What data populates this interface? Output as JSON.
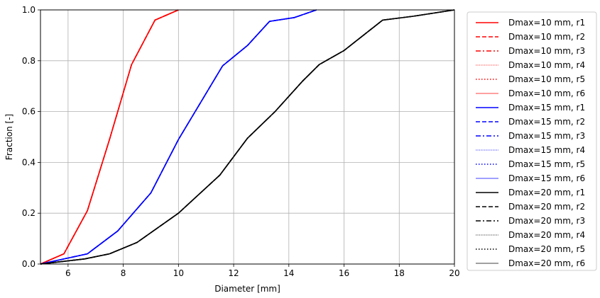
{
  "chart_data": {
    "type": "line",
    "xlabel": "Diameter [mm]",
    "ylabel": "Fraction [-]",
    "xlim": [
      5,
      20
    ],
    "ylim": [
      0,
      1
    ],
    "xticks": [
      6,
      8,
      10,
      12,
      14,
      16,
      18,
      20
    ],
    "yticks": [
      0.0,
      0.2,
      0.4,
      0.6,
      0.8,
      1.0
    ],
    "xtick_labels": [
      "6",
      "8",
      "10",
      "12",
      "14",
      "16",
      "18",
      "20"
    ],
    "ytick_labels": [
      "0.0",
      "0.2",
      "0.4",
      "0.6",
      "0.8",
      "1.0"
    ],
    "grid": true,
    "legend_position": "outside-right",
    "series": [
      {
        "name": "Dmax=10 mm, r1",
        "color": "#ff0000",
        "dash": "solid",
        "width": "normal",
        "x": [
          5,
          5.85,
          6.7,
          7.5,
          8.3,
          9.15,
          10
        ],
        "y": [
          0,
          0.04,
          0.21,
          0.49,
          0.785,
          0.96,
          1.0
        ]
      },
      {
        "name": "Dmax=10 mm, r2",
        "color": "#ff0000",
        "dash": "dashed",
        "width": "normal",
        "x": [
          5,
          5.85,
          6.7,
          7.5,
          8.3,
          9.15,
          10
        ],
        "y": [
          0,
          0.04,
          0.21,
          0.49,
          0.785,
          0.96,
          1.0
        ]
      },
      {
        "name": "Dmax=10 mm, r3",
        "color": "#ff0000",
        "dash": "dashdot",
        "width": "normal",
        "x": [
          5,
          5.85,
          6.7,
          7.5,
          8.3,
          9.15,
          10
        ],
        "y": [
          0,
          0.04,
          0.21,
          0.49,
          0.785,
          0.96,
          1.0
        ]
      },
      {
        "name": "Dmax=10 mm, r4",
        "color": "#ff0000",
        "dash": "densedot",
        "width": "thin",
        "x": [
          5,
          5.85,
          6.7,
          7.5,
          8.3,
          9.15,
          10
        ],
        "y": [
          0,
          0.04,
          0.21,
          0.49,
          0.785,
          0.96,
          1.0
        ]
      },
      {
        "name": "Dmax=10 mm, r5",
        "color": "#ff0000",
        "dash": "dotted",
        "width": "normal",
        "x": [
          5,
          5.85,
          6.7,
          7.5,
          8.3,
          9.15,
          10
        ],
        "y": [
          0,
          0.04,
          0.21,
          0.49,
          0.785,
          0.96,
          1.0
        ]
      },
      {
        "name": "Dmax=10 mm, r6",
        "color": "#ff0000",
        "dash": "solid",
        "width": "thin",
        "x": [
          5,
          5.85,
          6.7,
          7.5,
          8.3,
          9.15,
          10
        ],
        "y": [
          0,
          0.04,
          0.21,
          0.49,
          0.785,
          0.96,
          1.0
        ]
      },
      {
        "name": "Dmax=15 mm, r1",
        "color": "#0000ff",
        "dash": "solid",
        "width": "normal",
        "x": [
          5,
          6.7,
          7.8,
          9,
          10,
          11.6,
          12.5,
          13.3,
          14.2,
          15
        ],
        "y": [
          0,
          0.04,
          0.13,
          0.28,
          0.49,
          0.78,
          0.86,
          0.955,
          0.97,
          1.0
        ]
      },
      {
        "name": "Dmax=15 mm, r2",
        "color": "#0000ff",
        "dash": "dashed",
        "width": "normal",
        "x": [
          5,
          6.7,
          7.8,
          9,
          10,
          11.6,
          12.5,
          13.3,
          14.2,
          15
        ],
        "y": [
          0,
          0.04,
          0.13,
          0.28,
          0.49,
          0.78,
          0.86,
          0.955,
          0.97,
          1.0
        ]
      },
      {
        "name": "Dmax=15 mm, r3",
        "color": "#0000ff",
        "dash": "dashdot",
        "width": "normal",
        "x": [
          5,
          6.7,
          7.8,
          9,
          10,
          11.6,
          12.5,
          13.3,
          14.2,
          15
        ],
        "y": [
          0,
          0.04,
          0.13,
          0.28,
          0.49,
          0.78,
          0.86,
          0.955,
          0.97,
          1.0
        ]
      },
      {
        "name": "Dmax=15 mm, r4",
        "color": "#0000ff",
        "dash": "densedot",
        "width": "thin",
        "x": [
          5,
          6.7,
          7.8,
          9,
          10,
          11.6,
          12.5,
          13.3,
          14.2,
          15
        ],
        "y": [
          0,
          0.04,
          0.13,
          0.28,
          0.49,
          0.78,
          0.86,
          0.955,
          0.97,
          1.0
        ]
      },
      {
        "name": "Dmax=15 mm, r5",
        "color": "#0000ff",
        "dash": "dotted",
        "width": "normal",
        "x": [
          5,
          6.7,
          7.8,
          9,
          10,
          11.6,
          12.5,
          13.3,
          14.2,
          15
        ],
        "y": [
          0,
          0.04,
          0.13,
          0.28,
          0.49,
          0.78,
          0.86,
          0.955,
          0.97,
          1.0
        ]
      },
      {
        "name": "Dmax=15 mm, r6",
        "color": "#0000ff",
        "dash": "solid",
        "width": "thin",
        "x": [
          5,
          6.7,
          7.8,
          9,
          10,
          11.6,
          12.5,
          13.3,
          14.2,
          15
        ],
        "y": [
          0,
          0.04,
          0.13,
          0.28,
          0.49,
          0.78,
          0.86,
          0.955,
          0.97,
          1.0
        ]
      },
      {
        "name": "Dmax=20 mm, r1",
        "color": "#000000",
        "dash": "solid",
        "width": "normal",
        "x": [
          5,
          6.6,
          7.5,
          8.5,
          10,
          11.5,
          12.5,
          13.5,
          14.5,
          15.1,
          16,
          17.4,
          18.5,
          20
        ],
        "y": [
          0,
          0.02,
          0.04,
          0.085,
          0.2,
          0.35,
          0.495,
          0.6,
          0.72,
          0.785,
          0.84,
          0.96,
          0.975,
          1.0
        ]
      },
      {
        "name": "Dmax=20 mm, r2",
        "color": "#000000",
        "dash": "dashed",
        "width": "normal",
        "x": [
          5,
          6.6,
          7.5,
          8.5,
          10,
          11.5,
          12.5,
          13.5,
          14.5,
          15.1,
          16,
          17.4,
          18.5,
          20
        ],
        "y": [
          0,
          0.02,
          0.04,
          0.085,
          0.2,
          0.35,
          0.495,
          0.6,
          0.72,
          0.785,
          0.84,
          0.96,
          0.975,
          1.0
        ]
      },
      {
        "name": "Dmax=20 mm, r3",
        "color": "#000000",
        "dash": "dashdot",
        "width": "normal",
        "x": [
          5,
          6.6,
          7.5,
          8.5,
          10,
          11.5,
          12.5,
          13.5,
          14.5,
          15.1,
          16,
          17.4,
          18.5,
          20
        ],
        "y": [
          0,
          0.02,
          0.04,
          0.085,
          0.2,
          0.35,
          0.495,
          0.6,
          0.72,
          0.785,
          0.84,
          0.96,
          0.975,
          1.0
        ]
      },
      {
        "name": "Dmax=20 mm, r4",
        "color": "#000000",
        "dash": "densedot",
        "width": "thin",
        "x": [
          5,
          6.6,
          7.5,
          8.5,
          10,
          11.5,
          12.5,
          13.5,
          14.5,
          15.1,
          16,
          17.4,
          18.5,
          20
        ],
        "y": [
          0,
          0.02,
          0.04,
          0.085,
          0.2,
          0.35,
          0.495,
          0.6,
          0.72,
          0.785,
          0.84,
          0.96,
          0.975,
          1.0
        ]
      },
      {
        "name": "Dmax=20 mm, r5",
        "color": "#000000",
        "dash": "dotted",
        "width": "normal",
        "x": [
          5,
          6.6,
          7.5,
          8.5,
          10,
          11.5,
          12.5,
          13.5,
          14.5,
          15.1,
          16,
          17.4,
          18.5,
          20
        ],
        "y": [
          0,
          0.02,
          0.04,
          0.085,
          0.2,
          0.35,
          0.495,
          0.6,
          0.72,
          0.785,
          0.84,
          0.96,
          0.975,
          1.0
        ]
      },
      {
        "name": "Dmax=20 mm, r6",
        "color": "#000000",
        "dash": "solid",
        "width": "thin",
        "x": [
          5,
          6.6,
          7.5,
          8.5,
          10,
          11.5,
          12.5,
          13.5,
          14.5,
          15.1,
          16,
          17.4,
          18.5,
          20
        ],
        "y": [
          0,
          0.02,
          0.04,
          0.085,
          0.2,
          0.35,
          0.495,
          0.6,
          0.72,
          0.785,
          0.84,
          0.96,
          0.975,
          1.0
        ]
      }
    ]
  }
}
